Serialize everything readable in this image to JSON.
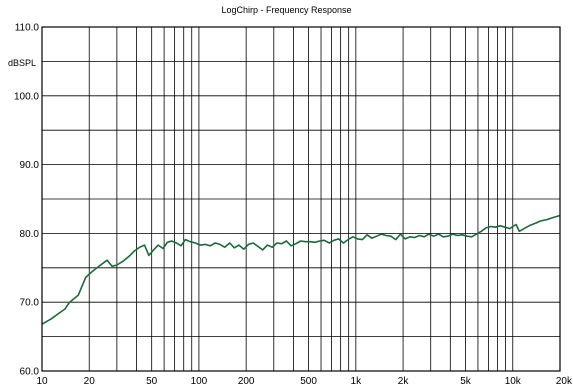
{
  "chart_data": {
    "type": "line",
    "title": "LogChirp - Frequency Response",
    "ylabel": "dBSPL",
    "xlabel": "",
    "x_scale": "log",
    "xlim": [
      10,
      20000
    ],
    "ylim": [
      60,
      110
    ],
    "grid": true,
    "line_color": "#1a6b3c",
    "y_ticks": [
      {
        "value": 110,
        "label": "110.0"
      },
      {
        "value": 100,
        "label": "100.0"
      },
      {
        "value": 90,
        "label": "90.0"
      },
      {
        "value": 80,
        "label": "80.0"
      },
      {
        "value": 70,
        "label": "70.0"
      },
      {
        "value": 60,
        "label": "60.0"
      }
    ],
    "y_gridlines": [
      60,
      65,
      70,
      75,
      80,
      85,
      90,
      95,
      100,
      105,
      110
    ],
    "x_ticks": [
      {
        "value": 10,
        "label": "10"
      },
      {
        "value": 20,
        "label": "20"
      },
      {
        "value": 50,
        "label": "50"
      },
      {
        "value": 100,
        "label": "100"
      },
      {
        "value": 200,
        "label": "200"
      },
      {
        "value": 500,
        "label": "500"
      },
      {
        "value": 1000,
        "label": "1k"
      },
      {
        "value": 2000,
        "label": "2k"
      },
      {
        "value": 5000,
        "label": "5k"
      },
      {
        "value": 10000,
        "label": "10k"
      },
      {
        "value": 20000,
        "label": "20k"
      }
    ],
    "x_gridlines": [
      20,
      30,
      40,
      50,
      60,
      70,
      80,
      90,
      100,
      200,
      300,
      400,
      500,
      600,
      700,
      800,
      900,
      1000,
      2000,
      3000,
      4000,
      5000,
      6000,
      7000,
      8000,
      9000,
      10000
    ],
    "series": [
      {
        "x": [
          10,
          11.5,
          13,
          14,
          15,
          17,
          19,
          21,
          23,
          26,
          28,
          30,
          33,
          36,
          39,
          42,
          45,
          48,
          51,
          55,
          59,
          63,
          67,
          72,
          77,
          82,
          88,
          95,
          102,
          110,
          118,
          127,
          136,
          146,
          157,
          168,
          180,
          193,
          207,
          222,
          238,
          255,
          273,
          293,
          314,
          337,
          361,
          387,
          415,
          445,
          477,
          511,
          548,
          588,
          630,
          676,
          725,
          777,
          833,
          893,
          958,
          1027,
          1101,
          1180,
          1266,
          1357,
          1455,
          1560,
          1673,
          1794,
          1923,
          2062,
          2211,
          2371,
          2542,
          2726,
          2923,
          3134,
          3361,
          3604,
          3864,
          4143,
          4443,
          4764,
          5108,
          5477,
          5873,
          6298,
          6753,
          7241,
          7764,
          8325,
          8927,
          9572,
          10000,
          10500,
          11000,
          12000,
          13000,
          14000,
          15000,
          16500,
          18000,
          20000
        ],
        "y": [
          66.8,
          67.6,
          68.5,
          69.0,
          70.0,
          71.0,
          73.6,
          74.5,
          75.2,
          76.1,
          75.2,
          75.4,
          76.0,
          76.7,
          77.5,
          78.0,
          78.3,
          76.8,
          77.5,
          78.3,
          77.8,
          78.7,
          78.9,
          78.6,
          78.2,
          79.1,
          78.8,
          78.6,
          78.3,
          78.4,
          78.2,
          78.6,
          78.4,
          78.0,
          78.6,
          77.9,
          78.3,
          77.7,
          78.4,
          78.6,
          78.1,
          77.6,
          78.3,
          78.0,
          78.6,
          78.5,
          78.9,
          78.2,
          78.5,
          78.9,
          78.8,
          78.8,
          78.7,
          78.9,
          79.0,
          78.6,
          79.0,
          79.2,
          78.6,
          79.1,
          79.5,
          79.2,
          79.1,
          79.8,
          79.3,
          79.6,
          79.9,
          79.7,
          79.6,
          79.1,
          79.9,
          79.2,
          79.5,
          79.4,
          79.7,
          79.5,
          79.9,
          79.6,
          79.9,
          79.5,
          79.6,
          79.9,
          79.7,
          79.8,
          79.6,
          79.5,
          79.9,
          80.3,
          80.8,
          81.0,
          80.9,
          81.1,
          80.9,
          80.7,
          81.0,
          81.3,
          80.3,
          80.8,
          81.2,
          81.5,
          81.8,
          82.0,
          82.3,
          82.6
        ]
      }
    ]
  }
}
